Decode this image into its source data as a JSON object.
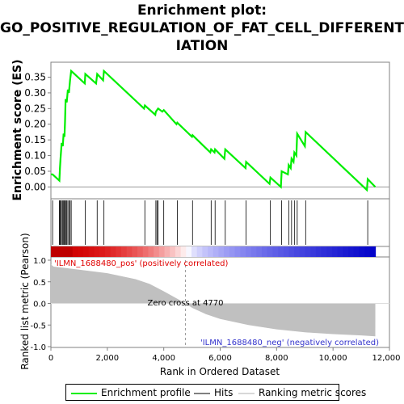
{
  "title_lines": [
    "Enrichment plot:",
    "GO_POSITIVE_REGULATION_OF_FAT_CELL_DIFFERENT",
    "IATION"
  ],
  "colors": {
    "enrichment_line": "#00ee00",
    "hits": "#000000",
    "metric_fill": "#c0c0c0",
    "pos_label": "#e00000",
    "neg_label": "#3333cc",
    "grid_zero": "#999999"
  },
  "legend": {
    "enrichment": "Enrichment profile",
    "hits": "Hits",
    "metric": "Ranking metric scores"
  },
  "chart_data": [
    {
      "type": "line",
      "name": "enrichment-profile",
      "ylabel": "Enrichment score (ES)",
      "ylim": [
        -0.03,
        0.39
      ],
      "xlim": [
        0,
        12000
      ],
      "yticks": [
        "0.00",
        "0.05",
        "0.10",
        "0.15",
        "0.20",
        "0.25",
        "0.30",
        "0.35"
      ],
      "ytick_values": [
        0.0,
        0.05,
        0.1,
        0.15,
        0.2,
        0.25,
        0.3,
        0.35
      ],
      "x": [
        0,
        60,
        300,
        320,
        340,
        380,
        420,
        450,
        480,
        500,
        520,
        560,
        600,
        640,
        680,
        720,
        1200,
        1220,
        1600,
        1640,
        1850,
        1880,
        3300,
        3330,
        3700,
        3720,
        3760,
        3800,
        3950,
        4000,
        4450,
        4480,
        5000,
        5020,
        5650,
        5680,
        5800,
        5820,
        6150,
        6180,
        6900,
        6920,
        7750,
        7780,
        8150,
        8180,
        8400,
        8430,
        8500,
        8530,
        8600,
        8630,
        8700,
        8730,
        9000,
        9030,
        11200,
        11230,
        11500
      ],
      "y": [
        0.04,
        0.04,
        0.02,
        0.06,
        0.09,
        0.14,
        0.13,
        0.17,
        0.16,
        0.21,
        0.28,
        0.27,
        0.31,
        0.3,
        0.34,
        0.37,
        0.33,
        0.36,
        0.33,
        0.36,
        0.34,
        0.37,
        0.25,
        0.26,
        0.23,
        0.24,
        0.245,
        0.25,
        0.24,
        0.245,
        0.2,
        0.205,
        0.16,
        0.165,
        0.11,
        0.12,
        0.11,
        0.12,
        0.09,
        0.12,
        0.06,
        0.08,
        0.01,
        0.03,
        0.0,
        0.05,
        0.04,
        0.07,
        0.06,
        0.09,
        0.08,
        0.11,
        0.1,
        0.17,
        0.13,
        0.175,
        -0.01,
        0.025,
        0.0
      ]
    },
    {
      "type": "scatter",
      "name": "hits",
      "x": [
        60,
        300,
        320,
        340,
        380,
        420,
        450,
        480,
        500,
        520,
        560,
        600,
        640,
        680,
        720,
        1220,
        1640,
        1880,
        3330,
        3720,
        3760,
        3800,
        4000,
        4480,
        5020,
        5680,
        5820,
        6180,
        6920,
        7780,
        8180,
        8430,
        8530,
        8630,
        8730,
        9030,
        11230
      ]
    },
    {
      "type": "area",
      "name": "ranking-metric",
      "ylabel": "Ranked list metric (Pearson)",
      "xlabel": "Rank in Ordered Dataset",
      "ylim": [
        -1.0,
        1.0
      ],
      "xlim": [
        0,
        12000
      ],
      "yticks": [
        "-1.0",
        "-0.5",
        "0.0",
        "0.5",
        "1.0"
      ],
      "ytick_values": [
        -1.0,
        -0.5,
        0.0,
        0.5,
        1.0
      ],
      "xticks": [
        "0",
        "2,000",
        "4,000",
        "6,000",
        "8,000",
        "10,000",
        "12,000"
      ],
      "xtick_values": [
        0,
        2000,
        4000,
        6000,
        8000,
        10000,
        12000
      ],
      "x": [
        0,
        100,
        500,
        1000,
        2000,
        3000,
        3500,
        4000,
        4500,
        4770,
        5000,
        5500,
        6000,
        7000,
        8000,
        9000,
        10000,
        11000,
        11500
      ],
      "y": [
        0.9,
        0.85,
        0.82,
        0.78,
        0.7,
        0.56,
        0.45,
        0.28,
        0.1,
        0.0,
        -0.1,
        -0.25,
        -0.36,
        -0.5,
        -0.6,
        -0.67,
        -0.71,
        -0.74,
        -0.76
      ],
      "zero_cross_label": "Zero cross at 4770",
      "zero_cross_x": 4770,
      "pos_label": "'ILMN_1688480_pos' (positively correlated)",
      "neg_label": "'ILMN_1688480_neg' (negatively correlated)"
    }
  ]
}
